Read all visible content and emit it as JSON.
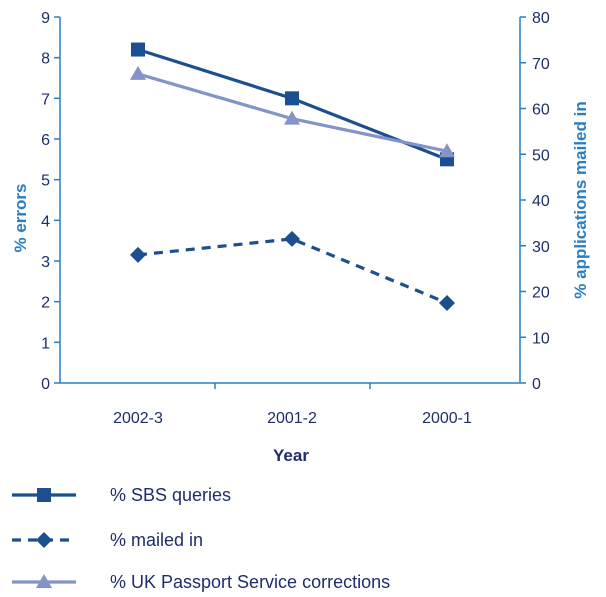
{
  "chart_data": {
    "type": "line",
    "categories": [
      "2002-3",
      "2001-2",
      "2000-1"
    ],
    "xlabel": "Year",
    "ylabel_left": "% errors",
    "ylabel_right": "% applications mailed in",
    "ylim_left": [
      0,
      9
    ],
    "ylim_right": [
      0,
      80
    ],
    "yticks_left": [
      "0",
      "1",
      "2",
      "3",
      "4",
      "5",
      "6",
      "7",
      "8",
      "9"
    ],
    "yticks_right": [
      "0",
      "10",
      "20",
      "30",
      "40",
      "50",
      "60",
      "70",
      "80"
    ],
    "grid": false,
    "legend_placement": "bottom",
    "series": [
      {
        "name": "% SBS queries",
        "axis": "left",
        "values": [
          8.2,
          7.0,
          5.5
        ],
        "color": "#1c4f8f",
        "marker": "square",
        "dash": "solid"
      },
      {
        "name": "% mailed in",
        "axis": "right",
        "values": [
          28,
          31.5,
          17.5
        ],
        "color": "#1c4f8f",
        "marker": "diamond",
        "dash": "dashed"
      },
      {
        "name": "% UK Passport Service corrections",
        "axis": "left",
        "values": [
          7.6,
          6.5,
          5.7
        ],
        "color": "#8294c8",
        "marker": "triangle",
        "dash": "solid"
      }
    ]
  }
}
